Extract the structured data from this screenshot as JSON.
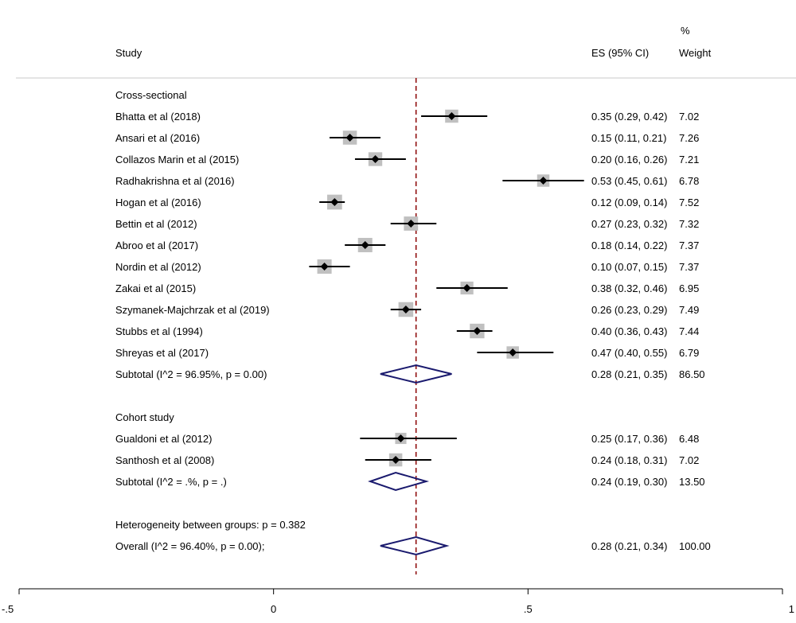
{
  "header": {
    "study_label": "Study",
    "es_label": "ES (95% CI)",
    "weight_label_line1": "%",
    "weight_label_line2": "Weight"
  },
  "colors": {
    "ci_line": "#000000",
    "marker": "#000000",
    "weight_box": "#c0c0c0",
    "diamond_stroke": "#1a1a6e",
    "reference_line": "#8b0000",
    "separator": "#c8c8c8"
  },
  "chart_data": {
    "type": "forest",
    "x_range": [
      -0.5,
      1
    ],
    "x_ticks": [
      -0.5,
      0,
      0.5,
      1
    ],
    "x_tick_labels": [
      "-.5",
      "0",
      ".5",
      "1"
    ],
    "overall_reference": 0.28,
    "rows": [
      {
        "kind": "group",
        "label": "Cross-sectional"
      },
      {
        "kind": "study",
        "label": "Bhatta et al (2018)",
        "es": 0.35,
        "lo": 0.29,
        "hi": 0.42,
        "weight": 7.02,
        "es_text": "0.35 (0.29, 0.42)",
        "weight_text": "7.02"
      },
      {
        "kind": "study",
        "label": "Ansari et al (2016)",
        "es": 0.15,
        "lo": 0.11,
        "hi": 0.21,
        "weight": 7.26,
        "es_text": "0.15 (0.11, 0.21)",
        "weight_text": "7.26"
      },
      {
        "kind": "study",
        "label": "Collazos Marin et al (2015)",
        "es": 0.2,
        "lo": 0.16,
        "hi": 0.26,
        "weight": 7.21,
        "es_text": "0.20 (0.16, 0.26)",
        "weight_text": "7.21"
      },
      {
        "kind": "study",
        "label": "Radhakrishna et al (2016)",
        "es": 0.53,
        "lo": 0.45,
        "hi": 0.61,
        "weight": 6.78,
        "es_text": "0.53 (0.45, 0.61)",
        "weight_text": "6.78"
      },
      {
        "kind": "study",
        "label": "Hogan et al (2016)",
        "es": 0.12,
        "lo": 0.09,
        "hi": 0.14,
        "weight": 7.52,
        "es_text": "0.12 (0.09, 0.14)",
        "weight_text": "7.52"
      },
      {
        "kind": "study",
        "label": "Bettin et al (2012)",
        "es": 0.27,
        "lo": 0.23,
        "hi": 0.32,
        "weight": 7.32,
        "es_text": "0.27 (0.23, 0.32)",
        "weight_text": "7.32"
      },
      {
        "kind": "study",
        "label": "Abroo et al (2017)",
        "es": 0.18,
        "lo": 0.14,
        "hi": 0.22,
        "weight": 7.37,
        "es_text": "0.18 (0.14, 0.22)",
        "weight_text": "7.37"
      },
      {
        "kind": "study",
        "label": "Nordin et al (2012)",
        "es": 0.1,
        "lo": 0.07,
        "hi": 0.15,
        "weight": 7.37,
        "es_text": "0.10 (0.07, 0.15)",
        "weight_text": "7.37"
      },
      {
        "kind": "study",
        "label": "Zakai et al (2015)",
        "es": 0.38,
        "lo": 0.32,
        "hi": 0.46,
        "weight": 6.95,
        "es_text": "0.38 (0.32, 0.46)",
        "weight_text": "6.95"
      },
      {
        "kind": "study",
        "label": "Szymanek-Majchrzak et al (2019)",
        "es": 0.26,
        "lo": 0.23,
        "hi": 0.29,
        "weight": 7.49,
        "es_text": "0.26 (0.23, 0.29)",
        "weight_text": "7.49"
      },
      {
        "kind": "study",
        "label": "Stubbs et al (1994)",
        "es": 0.4,
        "lo": 0.36,
        "hi": 0.43,
        "weight": 7.44,
        "es_text": "0.40 (0.36, 0.43)",
        "weight_text": "7.44"
      },
      {
        "kind": "study",
        "label": "Shreyas et al (2017)",
        "es": 0.47,
        "lo": 0.4,
        "hi": 0.55,
        "weight": 6.79,
        "es_text": "0.47 (0.40, 0.55)",
        "weight_text": "6.79"
      },
      {
        "kind": "subtotal",
        "label": "Subtotal  (I^2 = 96.95%, p = 0.00)",
        "es": 0.28,
        "lo": 0.21,
        "hi": 0.35,
        "weight": 86.5,
        "es_text": "0.28 (0.21, 0.35)",
        "weight_text": "86.50"
      },
      {
        "kind": "blank"
      },
      {
        "kind": "group",
        "label": "Cohort study"
      },
      {
        "kind": "study",
        "label": "Gualdoni et al (2012)",
        "es": 0.25,
        "lo": 0.17,
        "hi": 0.36,
        "weight": 6.48,
        "es_text": "0.25 (0.17, 0.36)",
        "weight_text": "6.48"
      },
      {
        "kind": "study",
        "label": "Santhosh et al (2008)",
        "es": 0.24,
        "lo": 0.18,
        "hi": 0.31,
        "weight": 7.02,
        "es_text": "0.24 (0.18, 0.31)",
        "weight_text": "7.02"
      },
      {
        "kind": "subtotal",
        "label": "Subtotal  (I^2 = .%, p = .)",
        "es": 0.24,
        "lo": 0.19,
        "hi": 0.3,
        "weight": 13.5,
        "es_text": "0.24 (0.19, 0.30)",
        "weight_text": "13.50"
      },
      {
        "kind": "blank"
      },
      {
        "kind": "note",
        "label": "Heterogeneity between groups: p = 0.382"
      },
      {
        "kind": "overall",
        "label": "Overall  (I^2 = 96.40%, p = 0.00);",
        "es": 0.28,
        "lo": 0.21,
        "hi": 0.34,
        "weight": 100.0,
        "es_text": "0.28 (0.21, 0.34)",
        "weight_text": "100.00"
      }
    ]
  }
}
